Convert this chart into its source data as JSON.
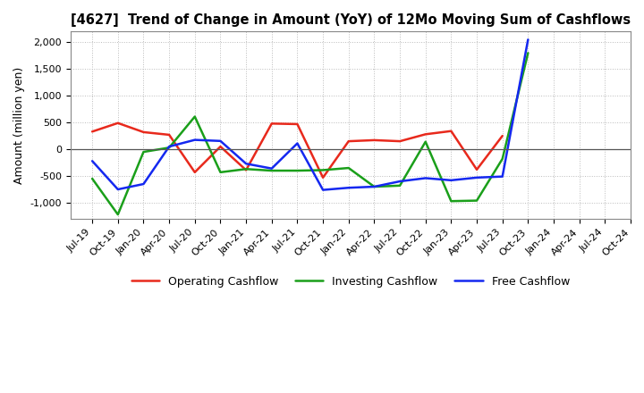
{
  "title": "[4627]  Trend of Change in Amount (YoY) of 12Mo Moving Sum of Cashflows",
  "ylabel": "Amount (million yen)",
  "x_labels": [
    "Jul-19",
    "Oct-19",
    "Jan-20",
    "Apr-20",
    "Jul-20",
    "Oct-20",
    "Jan-21",
    "Apr-21",
    "Jul-21",
    "Oct-21",
    "Jan-22",
    "Apr-22",
    "Jul-22",
    "Oct-22",
    "Jan-23",
    "Apr-23",
    "Jul-23",
    "Oct-23",
    "Jan-24",
    "Apr-24",
    "Jul-24",
    "Oct-24"
  ],
  "operating": [
    330,
    490,
    320,
    270,
    -430,
    50,
    -390,
    480,
    470,
    -530,
    150,
    170,
    150,
    280,
    340,
    -380,
    250,
    null,
    null,
    null,
    null,
    null
  ],
  "investing": [
    -550,
    -1220,
    -50,
    30,
    610,
    -430,
    -370,
    -400,
    -400,
    -390,
    -350,
    -700,
    -680,
    140,
    -970,
    -960,
    -180,
    1800,
    null,
    null,
    null,
    null
  ],
  "free": [
    -220,
    -750,
    -650,
    50,
    175,
    155,
    -270,
    -360,
    110,
    -760,
    -720,
    -700,
    -600,
    -540,
    -580,
    -530,
    -510,
    2050,
    null,
    null,
    null,
    null
  ],
  "operating_color": "#e8291c",
  "investing_color": "#1a9f1a",
  "free_color": "#1428f0",
  "ylim": [
    -1300,
    2200
  ],
  "yticks": [
    -1000,
    -500,
    0,
    500,
    1000,
    1500,
    2000
  ],
  "legend_labels": [
    "Operating Cashflow",
    "Investing Cashflow",
    "Free Cashflow"
  ],
  "bg_color": "#ffffff",
  "grid_color": "#bbbbbb"
}
